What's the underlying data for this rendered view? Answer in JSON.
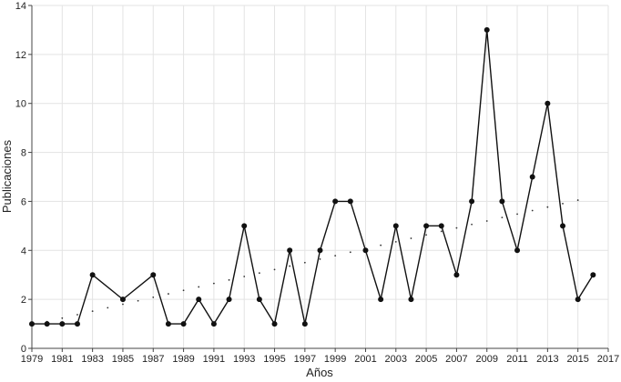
{
  "chart_data": {
    "type": "line",
    "xlabel": "Años",
    "ylabel": "Publicaciones",
    "xlim": [
      1979,
      2017
    ],
    "ylim": [
      0,
      14
    ],
    "x_ticks": [
      "1979",
      "1981",
      "1983",
      "1985",
      "1987",
      "1989",
      "1991",
      "1993",
      "1995",
      "1997",
      "1999",
      "2001",
      "2003",
      "2005",
      "2007",
      "2009",
      "2011",
      "2013",
      "2015",
      "2017"
    ],
    "y_ticks": [
      "0",
      "2",
      "4",
      "6",
      "8",
      "10",
      "12",
      "14"
    ],
    "grid": true,
    "series": [
      {
        "style": "solid-line-with-markers",
        "color": "#111111",
        "x": [
          1979,
          1980,
          1981,
          1982,
          1983,
          1985,
          1987,
          1988,
          1989,
          1990,
          1991,
          1992,
          1993,
          1994,
          1995,
          1996,
          1997,
          1998,
          1999,
          2000,
          2001,
          2002,
          2003,
          2004,
          2005,
          2006,
          2007,
          2008,
          2009,
          2010,
          2011,
          2012,
          2013,
          2014,
          2015,
          2016
        ],
        "y": [
          1,
          1,
          1,
          1,
          3,
          2,
          3,
          1,
          1,
          2,
          1,
          2,
          5,
          2,
          1,
          4,
          1,
          4,
          6,
          6,
          4,
          2,
          5,
          2,
          5,
          5,
          3,
          6,
          13,
          6,
          4,
          7,
          10,
          5,
          2,
          3
        ]
      },
      {
        "style": "dotted-trendline",
        "color": "#333333",
        "x": [
          1979,
          2015
        ],
        "y": [
          0.95,
          6.05
        ]
      }
    ]
  }
}
